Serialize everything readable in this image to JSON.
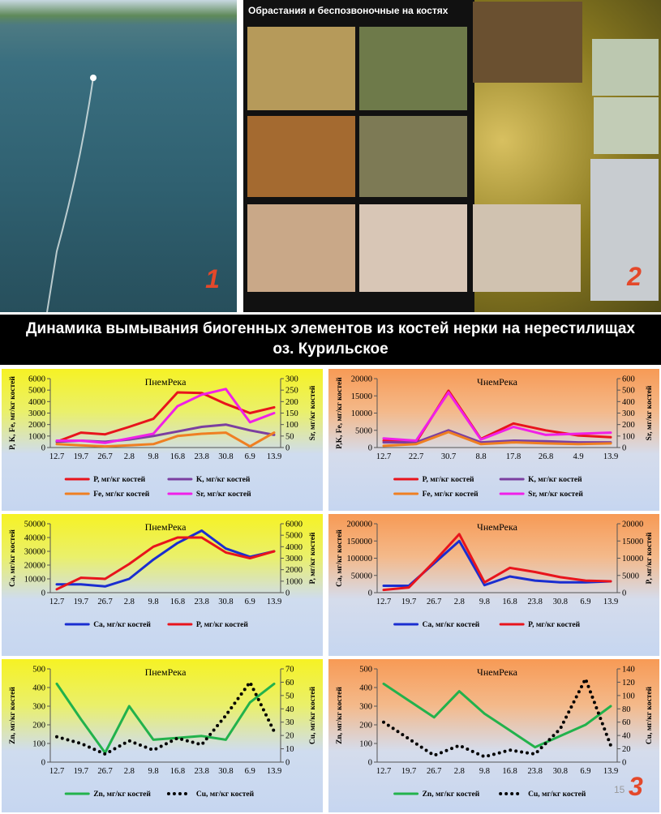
{
  "slide": {
    "photo1_label": "1",
    "photo2_caption": "Обрастания и беспозвоночные на костях",
    "photo2_label": "2",
    "title_line1": "Динамика вымывания биогенных элементов из костей нерки на нерестилищах",
    "title_line2": "оз. Курильское",
    "charts_label": "3",
    "page_number": "15"
  },
  "chart_data": [
    {
      "type": "line",
      "title": "ПнемРека",
      "categories": [
        "12.7",
        "19.7",
        "26.7",
        "2.8",
        "9.8",
        "16.8",
        "23.8",
        "30.8",
        "6.9",
        "13.9"
      ],
      "ylabel": "P, K, Fe, мг/кг костей",
      "y2label": "Sr, мг/кг костей",
      "ylim": [
        0,
        6000
      ],
      "yticks": [
        0,
        1000,
        2000,
        3000,
        4000,
        5000,
        6000
      ],
      "y2lim": [
        0,
        300
      ],
      "y2ticks": [
        0,
        50,
        100,
        150,
        200,
        250,
        300
      ],
      "series": [
        {
          "name": "P, мг/кг костей",
          "color": "#e8141c",
          "values": [
            500,
            1300,
            1150,
            1800,
            2500,
            4800,
            4750,
            3800,
            3000,
            3500
          ]
        },
        {
          "name": "K, мг/кг костей",
          "color": "#7b3fa0",
          "values": [
            500,
            600,
            500,
            700,
            1000,
            1400,
            1800,
            2000,
            1500,
            1100
          ]
        },
        {
          "name": "Fe, мг/кг костей",
          "color": "#ef7f22",
          "values": [
            300,
            200,
            100,
            200,
            300,
            1000,
            1200,
            1300,
            100,
            1300
          ]
        },
        {
          "name": "Sr, мг/кг костей",
          "color": "#f020e8",
          "axis": "y2",
          "values": [
            30,
            30,
            20,
            40,
            60,
            180,
            230,
            255,
            110,
            150
          ]
        }
      ]
    },
    {
      "type": "line",
      "title": "ЧнемРека",
      "categories": [
        "12.7",
        "22.7",
        "30.7",
        "8.8",
        "17.8",
        "26.8",
        "4.9",
        "13.9"
      ],
      "ylabel": "P,K, Fe, мг/кг костей",
      "y2label": "Sr, мг/кг костей",
      "ylim": [
        0,
        20000
      ],
      "yticks": [
        0,
        5000,
        10000,
        15000,
        20000
      ],
      "y2lim": [
        0,
        600
      ],
      "y2ticks": [
        0,
        100,
        200,
        300,
        400,
        500,
        600
      ],
      "series": [
        {
          "name": "P, мг/кг костей",
          "color": "#e8141c",
          "values": [
            2000,
            1500,
            16500,
            2500,
            7000,
            5000,
            3500,
            3000
          ]
        },
        {
          "name": "K, мг/кг костей",
          "color": "#7b3fa0",
          "values": [
            1500,
            1500,
            5000,
            1500,
            2000,
            1800,
            1500,
            1500
          ]
        },
        {
          "name": "Fe, мг/кг костей",
          "color": "#ef7f22",
          "values": [
            500,
            1000,
            4500,
            1000,
            1500,
            1200,
            1000,
            1200
          ]
        },
        {
          "name": "Sr, мг/кг костей",
          "color": "#f020e8",
          "axis": "y2",
          "values": [
            80,
            60,
            480,
            70,
            180,
            110,
            120,
            130
          ]
        }
      ]
    },
    {
      "type": "line",
      "title": "ПнемРека",
      "categories": [
        "12.7",
        "19.7",
        "26.7",
        "2.8",
        "9.8",
        "16.8",
        "23.8",
        "30.8",
        "6.9",
        "13.9"
      ],
      "ylabel": "Ca, мг/кг костей",
      "y2label": "P, мг/кг костей",
      "ylim": [
        0,
        50000
      ],
      "yticks": [
        0,
        10000,
        20000,
        30000,
        40000,
        50000
      ],
      "y2lim": [
        0,
        6000
      ],
      "y2ticks": [
        0,
        1000,
        2000,
        3000,
        4000,
        5000,
        6000
      ],
      "series": [
        {
          "name": "Ca, мг/кг костей",
          "color": "#1a2ed0",
          "values": [
            6000,
            6000,
            4500,
            10000,
            24000,
            36000,
            45000,
            32000,
            26000,
            30000
          ]
        },
        {
          "name": "P, мг/кг костей",
          "color": "#e8141c",
          "axis": "y2",
          "values": [
            300,
            1300,
            1200,
            2500,
            4000,
            4800,
            4800,
            3500,
            3000,
            3600
          ]
        }
      ]
    },
    {
      "type": "line",
      "title": "ЧнемРека",
      "categories": [
        "12.7",
        "19.7",
        "26.7",
        "2.8",
        "9.8",
        "16.8",
        "23.8",
        "30.8",
        "6.9",
        "13.9"
      ],
      "ylabel": "Ca, мг/кг костей",
      "y2label": "P, мг/кг костей",
      "ylim": [
        0,
        200000
      ],
      "yticks": [
        0,
        50000,
        100000,
        150000,
        200000
      ],
      "y2lim": [
        0,
        20000
      ],
      "y2ticks": [
        0,
        5000,
        10000,
        15000,
        20000
      ],
      "series": [
        {
          "name": "Ca, мг/кг костей",
          "color": "#1a2ed0",
          "values": [
            20000,
            20000,
            85000,
            150000,
            22000,
            47000,
            35000,
            30000,
            30000,
            33000
          ]
        },
        {
          "name": "P, мг/кг костей",
          "color": "#e8141c",
          "axis": "y2",
          "values": [
            800,
            1500,
            9000,
            17000,
            3000,
            7200,
            6000,
            4500,
            3500,
            3300
          ]
        }
      ]
    },
    {
      "type": "line",
      "title": "ПнемРека",
      "categories": [
        "12.7",
        "19.7",
        "26.7",
        "2.8",
        "9.8",
        "16.8",
        "23.8",
        "30.8",
        "6.9",
        "13.9"
      ],
      "ylabel": "Zn, мг/кг костей",
      "y2label": "Cu, мг/кг костей",
      "ylim": [
        0,
        500
      ],
      "yticks": [
        0,
        100,
        200,
        300,
        400,
        500
      ],
      "y2lim": [
        0,
        70
      ],
      "y2ticks": [
        0,
        10,
        20,
        30,
        40,
        50,
        60,
        70
      ],
      "series": [
        {
          "name": "Zn, мг/кг костей",
          "color": "#22b24c",
          "values": [
            420,
            230,
            50,
            300,
            120,
            130,
            140,
            120,
            320,
            420
          ]
        },
        {
          "name": "Cu, мг/кг костей",
          "color": "#000000",
          "axis": "y2",
          "dash": "dotted",
          "values": [
            19,
            14,
            6,
            16,
            9,
            18,
            13,
            35,
            60,
            23
          ]
        }
      ]
    },
    {
      "type": "line",
      "title": "ЧнемРека",
      "categories": [
        "12.7",
        "19.7",
        "26.7",
        "2.8",
        "9.8",
        "16.8",
        "23.8",
        "30.8",
        "6.9",
        "13.9"
      ],
      "ylabel": "Zn, мг/кг костей",
      "y2label": "Cu, мг/кг костей",
      "ylim": [
        0,
        500
      ],
      "yticks": [
        0,
        100,
        200,
        300,
        400,
        500
      ],
      "y2lim": [
        0,
        140
      ],
      "y2ticks": [
        0,
        20,
        40,
        60,
        80,
        100,
        120,
        140
      ],
      "series": [
        {
          "name": "Zn, мг/кг костей",
          "color": "#22b24c",
          "values": [
            420,
            330,
            240,
            380,
            260,
            170,
            80,
            140,
            200,
            300
          ]
        },
        {
          "name": "Cu, мг/кг костей",
          "color": "#000000",
          "axis": "y2",
          "dash": "dotted",
          "values": [
            60,
            35,
            10,
            25,
            8,
            18,
            12,
            50,
            125,
            25
          ]
        }
      ]
    }
  ]
}
